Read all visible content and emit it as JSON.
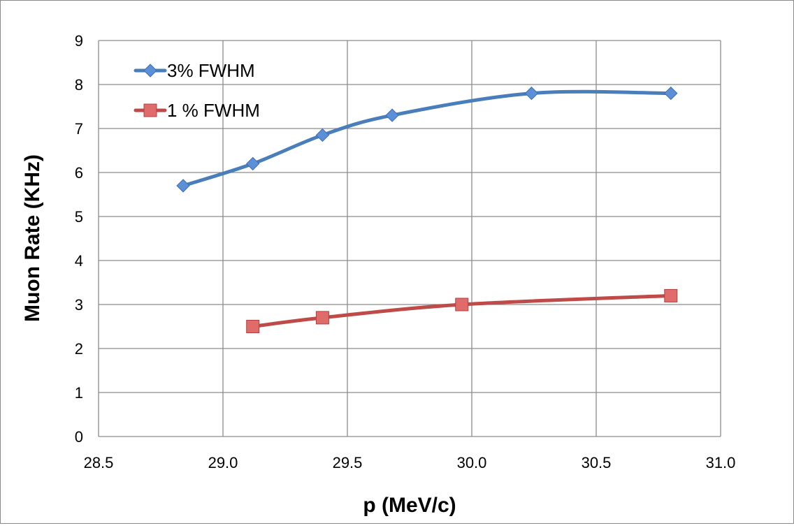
{
  "chart_data": {
    "type": "line",
    "title": "",
    "xlabel": "p (MeV/c)",
    "ylabel": "Muon Rate (KHz)",
    "xlim": [
      28.5,
      31.0
    ],
    "ylim": [
      0,
      9
    ],
    "xticks": [
      "28.5",
      "29.0",
      "29.5",
      "30.0",
      "30.5",
      "31.0"
    ],
    "xtick_values": [
      28.5,
      29.0,
      29.5,
      30.0,
      30.5,
      31.0
    ],
    "yticks": [
      "0",
      "1",
      "2",
      "3",
      "4",
      "5",
      "6",
      "7",
      "8",
      "9"
    ],
    "grid": true,
    "legend_position": "top-left",
    "series": [
      {
        "name": "3% FWHM",
        "color": "#4a7ebb",
        "marker": "diamond",
        "marker_color": "#5b8fd6",
        "x": [
          28.84,
          29.12,
          29.4,
          29.68,
          30.24,
          30.8
        ],
        "y": [
          5.7,
          6.2,
          6.85,
          7.3,
          7.8,
          7.8
        ]
      },
      {
        "name": "1 % FWHM",
        "color": "#be4b48",
        "marker": "square",
        "marker_color": "#e06b6b",
        "x": [
          29.12,
          29.4,
          29.96,
          30.8
        ],
        "y": [
          2.5,
          2.7,
          3.0,
          3.2
        ]
      }
    ]
  }
}
